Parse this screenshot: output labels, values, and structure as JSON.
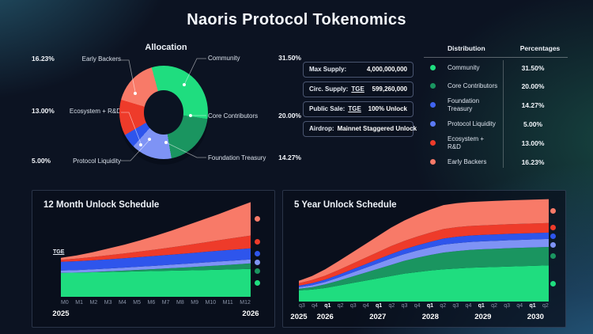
{
  "page_title": "Naoris Protocol Tokenomics",
  "allocation": {
    "title": "Allocation",
    "left": [
      {
        "pct": "16.23%",
        "label": "Early Backers"
      },
      {
        "pct": "13.00%",
        "label": "Ecosystem + R&D"
      },
      {
        "pct": "5.00%",
        "label": "Protocol Liquidity"
      }
    ],
    "right": [
      {
        "label": "Community",
        "pct": "31.50%"
      },
      {
        "label": "Core Contributors",
        "pct": "20.00%"
      },
      {
        "label": "Foundation Treasury",
        "pct": "14.27%"
      }
    ],
    "segments": [
      {
        "name": "Community",
        "value": 31.5,
        "color": "#1fdd7f"
      },
      {
        "name": "Core Contributors",
        "value": 20.0,
        "color": "#1a9560"
      },
      {
        "name": "Foundation Treasury",
        "value": 14.27,
        "color": "#7e93f5"
      },
      {
        "name": "Protocol Liquidity",
        "value": 5.0,
        "color": "#2e55ec"
      },
      {
        "name": "Ecosystem + R&D",
        "value": 13.0,
        "color": "#ee3b2a"
      },
      {
        "name": "Early Backers",
        "value": 16.23,
        "color": "#f87a68"
      }
    ]
  },
  "supply_table": {
    "rows": [
      {
        "label": "Max Supply:",
        "tge": "",
        "value": "4,000,000,000"
      },
      {
        "label": "Circ. Supply:",
        "tge": "TGE",
        "value": "599,260,000"
      },
      {
        "label": "Public Sale:",
        "tge": "TGE",
        "value": "100% Unlock"
      },
      {
        "label": "Airdrop:",
        "tge": "",
        "value": "Mainnet Staggered Unlock"
      }
    ]
  },
  "distribution_table": {
    "headers": [
      "Distribution",
      "Percentages"
    ],
    "rows": [
      {
        "name": "Community",
        "pct": "31.50%",
        "color": "#1fdd7f"
      },
      {
        "name": "Core Contributors",
        "pct": "20.00%",
        "color": "#1a9560"
      },
      {
        "name": "Foundation Treasury",
        "pct": "14.27%",
        "color": "#3f63f0"
      },
      {
        "name": "Protocol Liquidity",
        "pct": "5.00%",
        "color": "#5b7af5"
      },
      {
        "name": "Ecosystem + R&D",
        "pct": "13.00%",
        "color": "#ee3b2a"
      },
      {
        "name": "Early Backers",
        "pct": "16.23%",
        "color": "#f87a68"
      }
    ]
  },
  "chart_data": [
    {
      "type": "area",
      "title": "12 Month Unlock Schedule",
      "annotation": "TGE",
      "x_labels": [
        {
          "text": "M0",
          "bold": false
        },
        {
          "text": "M1",
          "bold": false
        },
        {
          "text": "M2",
          "bold": false
        },
        {
          "text": "M3",
          "bold": false
        },
        {
          "text": "M4",
          "bold": false
        },
        {
          "text": "M5",
          "bold": false
        },
        {
          "text": "M6",
          "bold": false
        },
        {
          "text": "M7",
          "bold": false
        },
        {
          "text": "M8",
          "bold": false
        },
        {
          "text": "M9",
          "bold": false
        },
        {
          "text": "M10",
          "bold": false
        },
        {
          "text": "M11",
          "bold": false
        },
        {
          "text": "M12",
          "bold": false
        }
      ],
      "years": [
        {
          "text": "2025",
          "index": 0
        },
        {
          "text": "2026",
          "index": 12
        }
      ],
      "legend_position": "right",
      "stacked": true,
      "series": [
        {
          "name": "Community",
          "color": "#1fdd7f",
          "values": [
            30,
            30.4,
            30.8,
            31.2,
            31.6,
            32,
            32.4,
            32.8,
            33.2,
            33.6,
            34,
            34.5,
            35
          ]
        },
        {
          "name": "Core Contributors",
          "color": "#1a9560",
          "values": [
            0,
            0,
            0.3,
            0.8,
            1.3,
            1.9,
            2.5,
            3.2,
            3.9,
            4.7,
            5.4,
            6.2,
            7
          ]
        },
        {
          "name": "Foundation Treasury",
          "color": "#7e93f5",
          "values": [
            3,
            3.2,
            3.4,
            3.6,
            3.8,
            4,
            4.2,
            4.4,
            4.6,
            4.8,
            5,
            5,
            5
          ]
        },
        {
          "name": "Protocol Liquidity",
          "color": "#2e55ec",
          "values": [
            11,
            11.2,
            11.4,
            11.6,
            11.8,
            12,
            12.3,
            12.6,
            12.9,
            13.2,
            13.5,
            13.8,
            14
          ]
        },
        {
          "name": "Ecosystem + R&D",
          "color": "#ee3b2a",
          "values": [
            2.5,
            3.2,
            4,
            5,
            6,
            7,
            8,
            9.2,
            10.5,
            11.8,
            13.2,
            14.6,
            16
          ]
        },
        {
          "name": "Early Backers",
          "color": "#f87a68",
          "values": [
            2.5,
            4,
            6,
            8.5,
            11,
            14,
            17.5,
            21,
            25,
            29,
            33,
            37.5,
            42
          ]
        }
      ]
    },
    {
      "type": "area",
      "title": "5 Year Unlock Schedule",
      "annotation": "",
      "x_labels": [
        {
          "text": "q3",
          "bold": false
        },
        {
          "text": "q4",
          "bold": false
        },
        {
          "text": "q1",
          "bold": true
        },
        {
          "text": "q2",
          "bold": false
        },
        {
          "text": "q3",
          "bold": false
        },
        {
          "text": "q4",
          "bold": false
        },
        {
          "text": "q1",
          "bold": true
        },
        {
          "text": "q2",
          "bold": false
        },
        {
          "text": "q3",
          "bold": false
        },
        {
          "text": "q4",
          "bold": false
        },
        {
          "text": "q1",
          "bold": true
        },
        {
          "text": "q2",
          "bold": false
        },
        {
          "text": "q3",
          "bold": false
        },
        {
          "text": "q4",
          "bold": false
        },
        {
          "text": "q1",
          "bold": true
        },
        {
          "text": "q2",
          "bold": false
        },
        {
          "text": "q3",
          "bold": false
        },
        {
          "text": "q4",
          "bold": false
        },
        {
          "text": "q1",
          "bold": true
        },
        {
          "text": "q2",
          "bold": false
        }
      ],
      "years": [
        {
          "text": "2025",
          "index": 0
        },
        {
          "text": "2026",
          "index": 2
        },
        {
          "text": "2027",
          "index": 6
        },
        {
          "text": "2028",
          "index": 10
        },
        {
          "text": "2029",
          "index": 14
        },
        {
          "text": "2030",
          "index": 18
        }
      ],
      "legend_position": "right",
      "stacked": true,
      "series": [
        {
          "name": "Community",
          "color": "#1fdd7f",
          "values": [
            14,
            15,
            17,
            20,
            23,
            26,
            29,
            32,
            35,
            37,
            39,
            40.5,
            41.5,
            42.5,
            43,
            43.5,
            44,
            44.5,
            45,
            45.5
          ]
        },
        {
          "name": "Core Contributors",
          "color": "#1a9560",
          "values": [
            2,
            3,
            4.5,
            6,
            8,
            10,
            12,
            14,
            16,
            18,
            19.5,
            21,
            21.8,
            22.3,
            22.6,
            22.8,
            23,
            23,
            23,
            23
          ]
        },
        {
          "name": "Foundation Treasury",
          "color": "#7e93f5",
          "values": [
            2,
            2.5,
            3,
            4,
            5,
            6,
            7,
            8,
            8.5,
            9,
            9.5,
            10,
            10,
            10,
            10,
            10,
            10,
            10,
            10,
            10
          ]
        },
        {
          "name": "Protocol Liquidity",
          "color": "#2e55ec",
          "values": [
            2,
            2.5,
            3,
            3.5,
            4,
            4.5,
            5,
            5.5,
            6,
            6.5,
            7,
            7.5,
            8,
            8,
            8,
            8,
            8,
            8,
            8,
            8
          ]
        },
        {
          "name": "Ecosystem + R&D",
          "color": "#ee3b2a",
          "values": [
            3,
            4,
            5,
            6,
            7,
            8,
            9,
            10,
            10.5,
            11,
            11.5,
            12,
            12,
            12,
            12,
            12,
            12,
            12,
            12,
            12
          ]
        },
        {
          "name": "Early Backers",
          "color": "#f87a68",
          "values": [
            3,
            5,
            8,
            11,
            14,
            17,
            20,
            23,
            25.5,
            27.5,
            29,
            30,
            30,
            30,
            30,
            30,
            30,
            30,
            30,
            30
          ]
        }
      ]
    }
  ]
}
